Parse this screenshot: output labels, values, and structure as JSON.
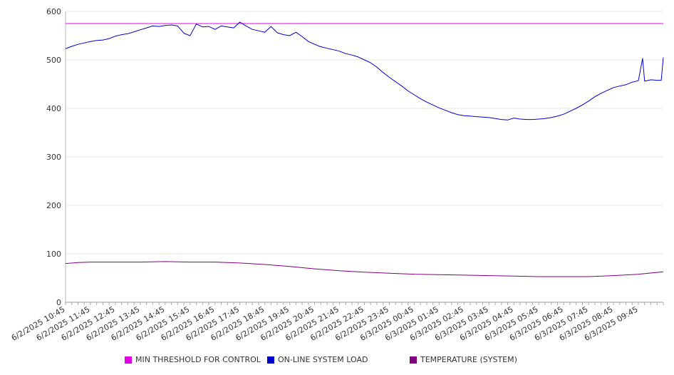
{
  "chart_data": {
    "type": "line",
    "title": "",
    "xlabel": "",
    "ylabel": "",
    "ylim": [
      0,
      600
    ],
    "yticks": [
      0,
      100,
      200,
      300,
      400,
      500,
      600
    ],
    "grid": true,
    "legend_position": "bottom",
    "x_tick_labels": [
      "6/2/2025 10:45",
      "6/2/2025 11:45",
      "6/2/2025 12:45",
      "6/2/2025 13:45",
      "6/2/2025 14:45",
      "6/2/2025 15:45",
      "6/2/2025 16:45",
      "6/2/2025 17:45",
      "6/2/2025 18:45",
      "6/2/2025 19:45",
      "6/2/2025 20:45",
      "6/2/2025 21:45",
      "6/2/2025 22:45",
      "6/2/2025 23:45",
      "6/3/2025 00:45",
      "6/3/2025 01:45",
      "6/3/2025 02:45",
      "6/3/2025 03:45",
      "6/3/2025 04:45",
      "6/3/2025 05:45",
      "6/3/2025 06:45",
      "6/3/2025 07:45",
      "6/3/2025 08:45",
      "6/3/2025 09:45"
    ],
    "x_start": "6/2/2025 10:45",
    "x_end": "6/3/2025 10:45",
    "series": [
      {
        "name": "MIN THRESHOLD FOR CONTROL",
        "color": "#e600e6",
        "points": [
          [
            "6/2/2025 10:45",
            575
          ],
          [
            "6/3/2025 10:45",
            575
          ]
        ]
      },
      {
        "name": "ON-LINE SYSTEM LOAD",
        "color": "#0000cc",
        "points": [
          [
            "6/2/2025 10:45",
            523
          ],
          [
            "6/2/2025 11:00",
            528
          ],
          [
            "6/2/2025 11:15",
            532
          ],
          [
            "6/2/2025 11:30",
            535
          ],
          [
            "6/2/2025 11:45",
            538
          ],
          [
            "6/2/2025 12:00",
            540
          ],
          [
            "6/2/2025 12:15",
            541
          ],
          [
            "6/2/2025 12:30",
            544
          ],
          [
            "6/2/2025 12:45",
            549
          ],
          [
            "6/2/2025 13:00",
            552
          ],
          [
            "6/2/2025 13:15",
            554
          ],
          [
            "6/2/2025 13:30",
            558
          ],
          [
            "6/2/2025 13:45",
            562
          ],
          [
            "6/2/2025 14:00",
            566
          ],
          [
            "6/2/2025 14:15",
            570
          ],
          [
            "6/2/2025 14:30",
            569
          ],
          [
            "6/2/2025 14:45",
            571
          ],
          [
            "6/2/2025 15:00",
            572
          ],
          [
            "6/2/2025 15:15",
            570
          ],
          [
            "6/2/2025 15:30",
            555
          ],
          [
            "6/2/2025 15:45",
            550
          ],
          [
            "6/2/2025 16:00",
            574
          ],
          [
            "6/2/2025 16:15",
            568
          ],
          [
            "6/2/2025 16:30",
            569
          ],
          [
            "6/2/2025 16:45",
            563
          ],
          [
            "6/2/2025 17:00",
            570
          ],
          [
            "6/2/2025 17:15",
            568
          ],
          [
            "6/2/2025 17:30",
            566
          ],
          [
            "6/2/2025 17:45",
            578
          ],
          [
            "6/2/2025 18:00",
            570
          ],
          [
            "6/2/2025 18:15",
            563
          ],
          [
            "6/2/2025 18:30",
            560
          ],
          [
            "6/2/2025 18:45",
            557
          ],
          [
            "6/2/2025 19:00",
            569
          ],
          [
            "6/2/2025 19:15",
            556
          ],
          [
            "6/2/2025 19:30",
            552
          ],
          [
            "6/2/2025 19:45",
            550
          ],
          [
            "6/2/2025 20:00",
            557
          ],
          [
            "6/2/2025 20:15",
            548
          ],
          [
            "6/2/2025 20:30",
            538
          ],
          [
            "6/2/2025 20:45",
            532
          ],
          [
            "6/2/2025 21:00",
            527
          ],
          [
            "6/2/2025 21:15",
            524
          ],
          [
            "6/2/2025 21:30",
            521
          ],
          [
            "6/2/2025 21:45",
            518
          ],
          [
            "6/2/2025 22:00",
            513
          ],
          [
            "6/2/2025 22:15",
            510
          ],
          [
            "6/2/2025 22:30",
            506
          ],
          [
            "6/2/2025 22:45",
            500
          ],
          [
            "6/2/2025 23:00",
            494
          ],
          [
            "6/2/2025 23:15",
            485
          ],
          [
            "6/2/2025 23:30",
            474
          ],
          [
            "6/2/2025 23:45",
            464
          ],
          [
            "6/3/2025 00:00",
            455
          ],
          [
            "6/3/2025 00:15",
            446
          ],
          [
            "6/3/2025 00:30",
            436
          ],
          [
            "6/3/2025 00:45",
            428
          ],
          [
            "6/3/2025 01:00",
            420
          ],
          [
            "6/3/2025 01:15",
            413
          ],
          [
            "6/3/2025 01:30",
            407
          ],
          [
            "6/3/2025 01:45",
            401
          ],
          [
            "6/3/2025 02:00",
            396
          ],
          [
            "6/3/2025 02:15",
            391
          ],
          [
            "6/3/2025 02:30",
            387
          ],
          [
            "6/3/2025 02:45",
            385
          ],
          [
            "6/3/2025 03:00",
            384
          ],
          [
            "6/3/2025 03:15",
            383
          ],
          [
            "6/3/2025 03:30",
            382
          ],
          [
            "6/3/2025 03:45",
            381
          ],
          [
            "6/3/2025 04:00",
            379
          ],
          [
            "6/3/2025 04:15",
            377
          ],
          [
            "6/3/2025 04:30",
            376
          ],
          [
            "6/3/2025 04:45",
            380
          ],
          [
            "6/3/2025 05:00",
            378
          ],
          [
            "6/3/2025 05:15",
            377
          ],
          [
            "6/3/2025 05:30",
            377
          ],
          [
            "6/3/2025 05:45",
            378
          ],
          [
            "6/3/2025 06:00",
            379
          ],
          [
            "6/3/2025 06:15",
            381
          ],
          [
            "6/3/2025 06:30",
            384
          ],
          [
            "6/3/2025 06:45",
            388
          ],
          [
            "6/3/2025 07:00",
            394
          ],
          [
            "6/3/2025 07:15",
            400
          ],
          [
            "6/3/2025 07:30",
            407
          ],
          [
            "6/3/2025 07:45",
            415
          ],
          [
            "6/3/2025 08:00",
            424
          ],
          [
            "6/3/2025 08:15",
            431
          ],
          [
            "6/3/2025 08:30",
            437
          ],
          [
            "6/3/2025 08:45",
            443
          ],
          [
            "6/3/2025 09:00",
            446
          ],
          [
            "6/3/2025 09:15",
            449
          ],
          [
            "6/3/2025 09:30",
            454
          ],
          [
            "6/3/2025 09:45",
            457
          ],
          [
            "6/3/2025 09:55",
            503
          ],
          [
            "6/3/2025 10:00",
            456
          ],
          [
            "6/3/2025 10:15",
            459
          ],
          [
            "6/3/2025 10:30",
            458
          ],
          [
            "6/3/2025 10:40",
            458
          ],
          [
            "6/3/2025 10:45",
            505
          ]
        ]
      },
      {
        "name": "TEMPERATURE (SYSTEM)",
        "color": "#800080",
        "points": [
          [
            "6/2/2025 10:45",
            80
          ],
          [
            "6/2/2025 11:15",
            82
          ],
          [
            "6/2/2025 11:45",
            83
          ],
          [
            "6/2/2025 12:45",
            83
          ],
          [
            "6/2/2025 13:45",
            83
          ],
          [
            "6/2/2025 14:45",
            84
          ],
          [
            "6/2/2025 15:45",
            83
          ],
          [
            "6/2/2025 16:45",
            83
          ],
          [
            "6/2/2025 17:45",
            81
          ],
          [
            "6/2/2025 18:45",
            78
          ],
          [
            "6/2/2025 19:45",
            74
          ],
          [
            "6/2/2025 20:45",
            69
          ],
          [
            "6/2/2025 21:45",
            65
          ],
          [
            "6/2/2025 22:45",
            62
          ],
          [
            "6/2/2025 23:45",
            60
          ],
          [
            "6/3/2025 00:45",
            58
          ],
          [
            "6/3/2025 01:45",
            57
          ],
          [
            "6/3/2025 02:45",
            56
          ],
          [
            "6/3/2025 03:45",
            55
          ],
          [
            "6/3/2025 04:45",
            54
          ],
          [
            "6/3/2025 05:45",
            53
          ],
          [
            "6/3/2025 06:45",
            53
          ],
          [
            "6/3/2025 07:45",
            53
          ],
          [
            "6/3/2025 08:45",
            55
          ],
          [
            "6/3/2025 09:45",
            58
          ],
          [
            "6/3/2025 10:45",
            63
          ]
        ]
      }
    ]
  }
}
